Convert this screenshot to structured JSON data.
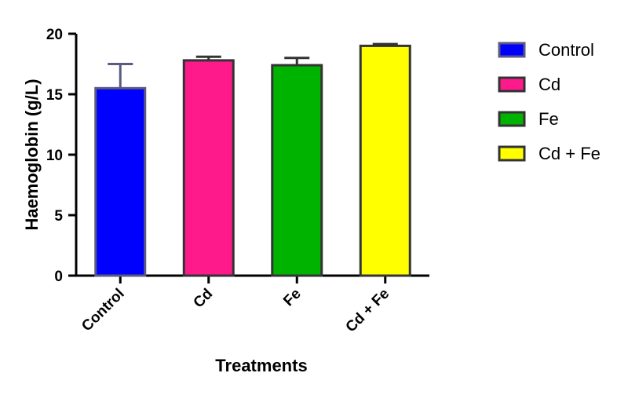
{
  "chart_data": {
    "type": "bar",
    "categories": [
      "Control",
      "Cd",
      "Fe",
      "Cd + Fe"
    ],
    "values": [
      15.5,
      17.8,
      17.4,
      19.0
    ],
    "errors": [
      2.0,
      0.3,
      0.6,
      0.15
    ],
    "colors": [
      "#0000ff",
      "#ff1a8c",
      "#00b300",
      "#ffff00"
    ],
    "border_colors": [
      "#5b5b80",
      "#333333",
      "#333333",
      "#333333"
    ],
    "xlabel": "Treatments",
    "ylabel": "Haemoglobin (g/L)",
    "ylim": [
      0,
      20
    ],
    "yticks": [
      0,
      5,
      10,
      15,
      20
    ],
    "grid": false,
    "legend": {
      "placement": "right",
      "entries": [
        "Control",
        "Cd",
        "Fe",
        "Cd + Fe"
      ]
    }
  }
}
